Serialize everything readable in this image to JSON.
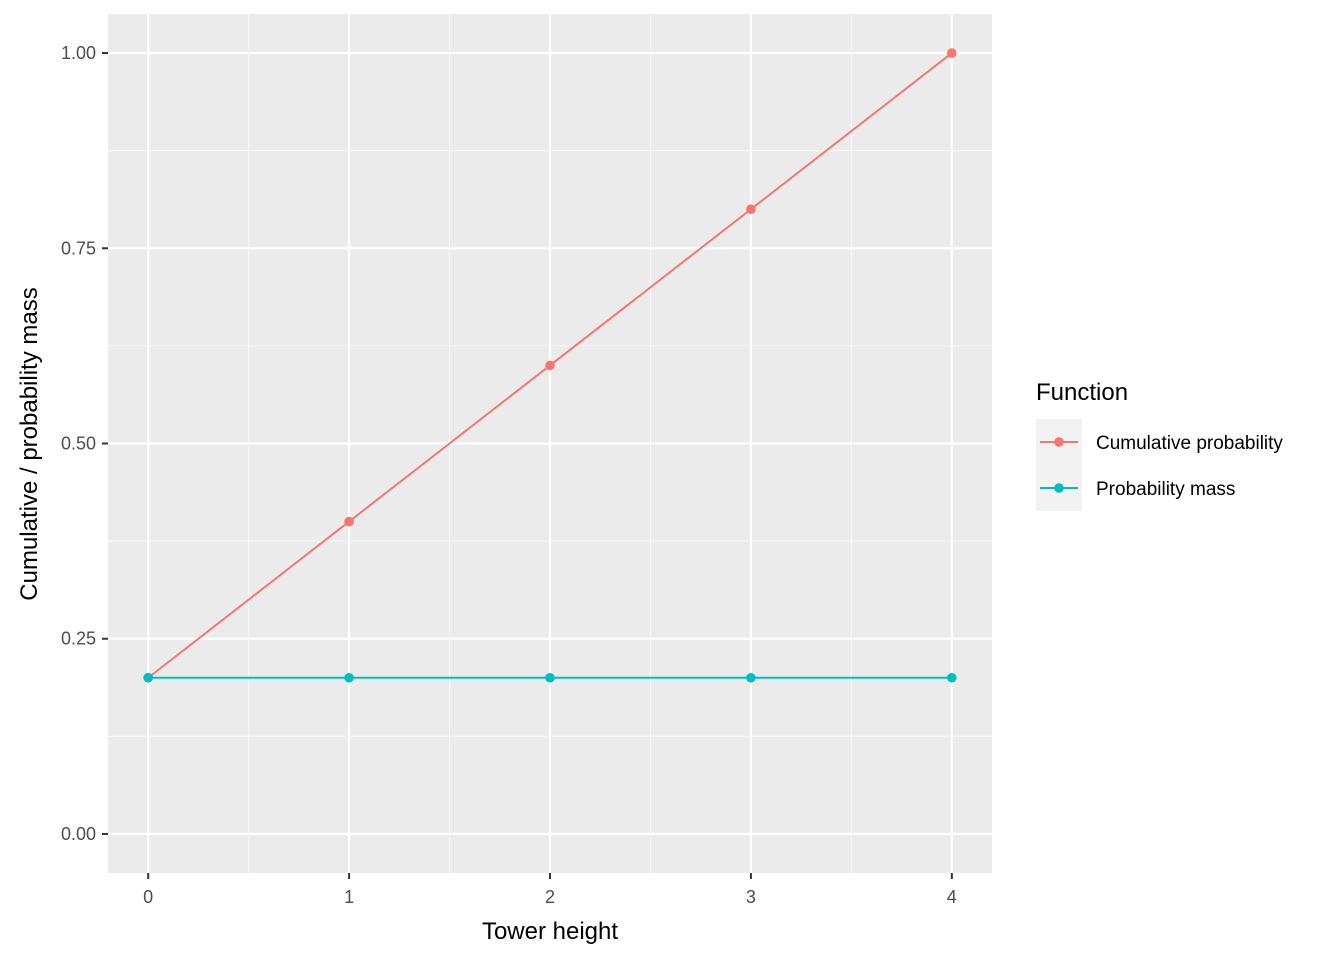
{
  "chart_data": {
    "type": "line",
    "title": "",
    "xlabel": "Tower height",
    "ylabel": "Cumulative / probability mass",
    "x": [
      0,
      1,
      2,
      3,
      4
    ],
    "x_ticks": [
      0,
      1,
      2,
      3,
      4
    ],
    "x_tick_labels": [
      "0",
      "1",
      "2",
      "3",
      "4"
    ],
    "y_ticks": [
      0,
      0.25,
      0.5,
      0.75,
      1
    ],
    "y_tick_labels": [
      "0.00",
      "0.25",
      "0.50",
      "0.75",
      "1.00"
    ],
    "xlim": [
      -0.2,
      4.2
    ],
    "ylim": [
      -0.05,
      1.05
    ],
    "grid": true,
    "legend": {
      "title": "Function",
      "placement": "right"
    },
    "series": [
      {
        "name": "Cumulative probability",
        "color": "#F8766D",
        "values": [
          0.2,
          0.4,
          0.6,
          0.8,
          1.0
        ]
      },
      {
        "name": "Probability mass",
        "color": "#00BFC4",
        "values": [
          0.2,
          0.2,
          0.2,
          0.2,
          0.2
        ]
      }
    ],
    "colors": {
      "panel_background": "#EBEBEB",
      "grid_major": "#FFFFFF",
      "grid_minor": "#F7F7F7",
      "legend_key_background": "#F2F2F2"
    }
  }
}
